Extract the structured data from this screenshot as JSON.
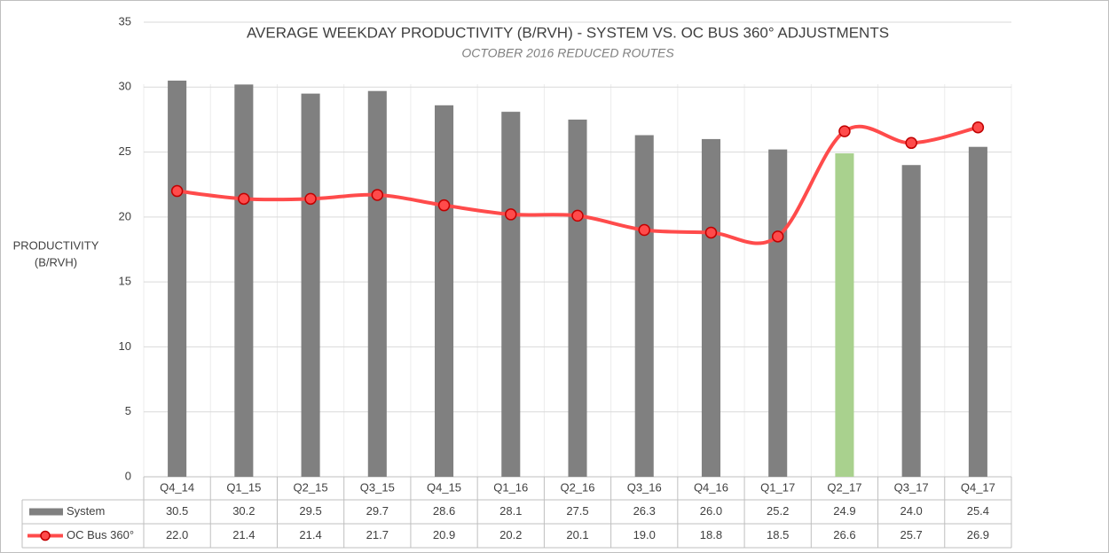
{
  "chart_data": {
    "type": "bar_line_table",
    "title": "AVERAGE WEEKDAY PRODUCTIVITY (B/RVH) - SYSTEM VS. OC BUS 360° ADJUSTMENTS",
    "subtitle": "OCTOBER 2016 REDUCED ROUTES",
    "y_label": [
      "PRODUCTIVITY",
      "(B/RVH)"
    ],
    "categories": [
      "Q4_14",
      "Q1_15",
      "Q2_15",
      "Q3_15",
      "Q4_15",
      "Q1_16",
      "Q2_16",
      "Q3_16",
      "Q4_16",
      "Q1_17",
      "Q2_17",
      "Q3_17",
      "Q4_17"
    ],
    "series": [
      {
        "name": "System",
        "type": "bar",
        "color": "#808080",
        "colors": [
          "#808080",
          "#808080",
          "#808080",
          "#808080",
          "#808080",
          "#808080",
          "#808080",
          "#808080",
          "#808080",
          "#808080",
          "#a9d18e",
          "#808080",
          "#808080"
        ],
        "values": [
          30.5,
          30.2,
          29.5,
          29.7,
          28.6,
          28.1,
          27.5,
          26.3,
          26.0,
          25.2,
          24.9,
          24.0,
          25.4
        ],
        "value_labels": [
          "30.5",
          "30.2",
          "29.5",
          "29.7",
          "28.6",
          "28.1",
          "27.5",
          "26.3",
          "26.0",
          "25.2",
          "24.9",
          "24.0",
          "25.4"
        ]
      },
      {
        "name": "OC Bus 360°",
        "type": "line",
        "color": "#ff4b4b",
        "marker_stroke": "#c00000",
        "smooth": true,
        "values": [
          22.0,
          21.4,
          21.4,
          21.7,
          20.9,
          20.2,
          20.1,
          19.0,
          18.8,
          18.5,
          26.6,
          25.7,
          26.9
        ],
        "value_labels": [
          "22.0",
          "21.4",
          "21.4",
          "21.7",
          "20.9",
          "20.2",
          "20.1",
          "19.0",
          "18.8",
          "18.5",
          "26.6",
          "25.7",
          "26.9"
        ]
      }
    ],
    "ylim": [
      0,
      35
    ],
    "yticks": [
      0,
      5,
      10,
      15,
      20,
      25,
      30,
      35
    ],
    "grid": true
  }
}
